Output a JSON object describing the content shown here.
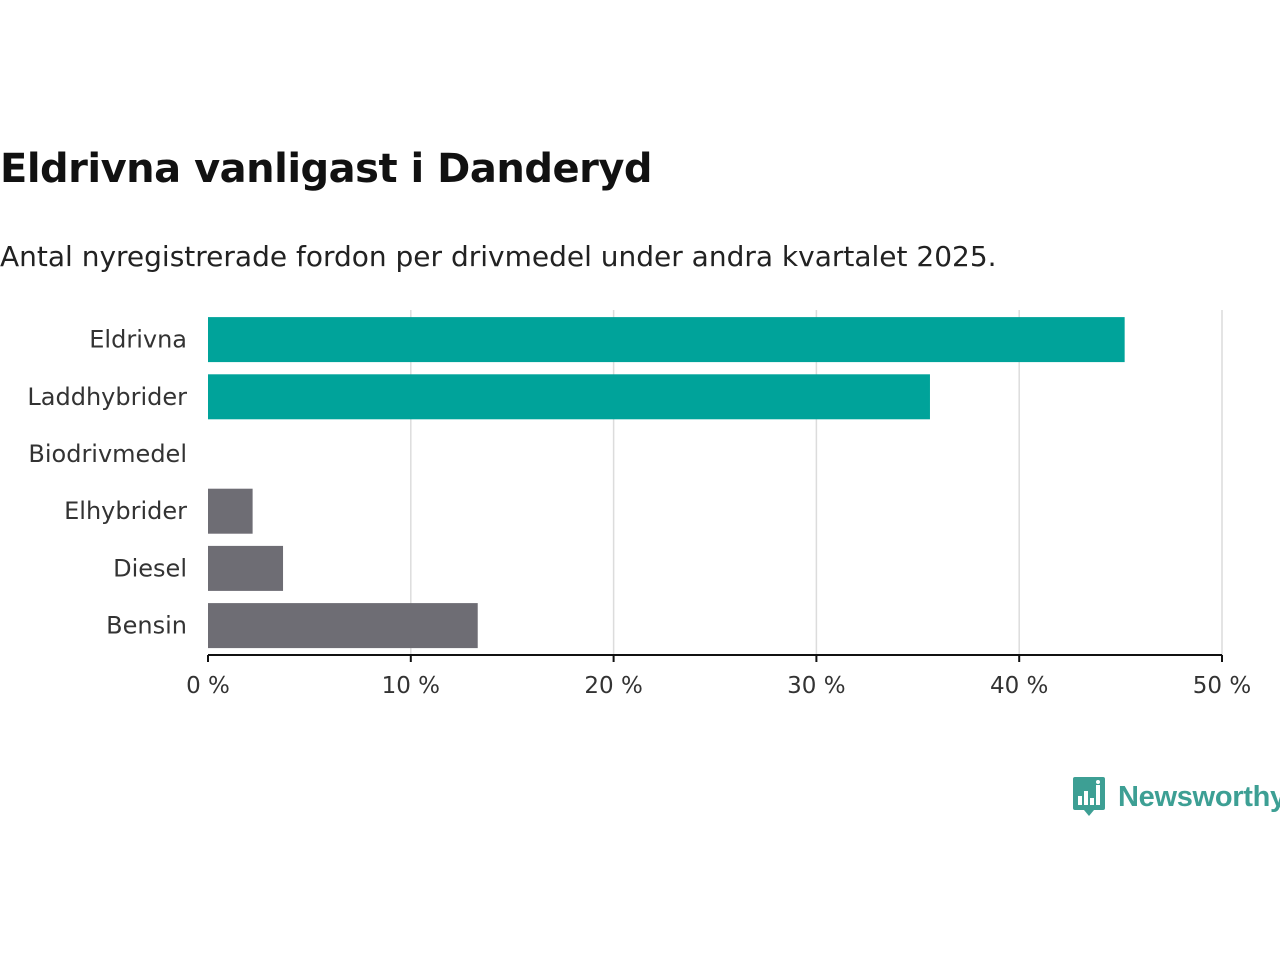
{
  "title": "Eldrivna vanligast i Danderyd",
  "subtitle": "Antal nyregistrerade fordon per drivmedel under andra kvartalet 2025.",
  "brand": {
    "name": "Newsworthy",
    "icon": "newsworthy-logo-icon",
    "color": "#3d9f94"
  },
  "colors": {
    "highlight": "#00a39a",
    "other": "#6e6d74",
    "grid": "#dcdcdc",
    "axis": "#111111"
  },
  "chart_data": {
    "type": "bar",
    "orientation": "horizontal",
    "categories": [
      "Eldrivna",
      "Laddhybrider",
      "Biodrivmedel",
      "Elhybrider",
      "Diesel",
      "Bensin"
    ],
    "values": [
      45.2,
      35.6,
      0,
      2.2,
      3.7,
      13.3
    ],
    "highlight": [
      true,
      true,
      false,
      false,
      false,
      false
    ],
    "xlim": [
      0,
      50
    ],
    "xticks": [
      0,
      10,
      20,
      30,
      40,
      50
    ],
    "xtick_labels": [
      "0 %",
      "10 %",
      "20 %",
      "30 %",
      "40 %",
      "50 %"
    ],
    "grid": true
  }
}
